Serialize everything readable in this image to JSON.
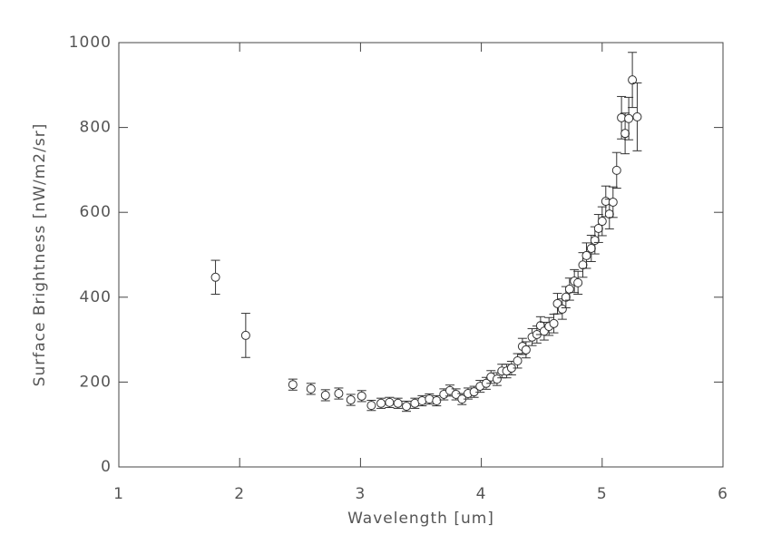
{
  "chart_data": {
    "type": "scatter",
    "x_label": "Wavelength [um]",
    "y_label": "Surface Brightness [nW/m2/sr]",
    "color": "#333333",
    "xlim": [
      1,
      6
    ],
    "xticks": [
      1,
      2,
      3,
      4,
      5,
      6
    ],
    "ylim": [
      0,
      1000
    ],
    "yticks": [
      0,
      200,
      400,
      600,
      800,
      1000
    ],
    "x": [
      1.8,
      2.05,
      2.44,
      2.59,
      2.71,
      2.82,
      2.92,
      3.01,
      3.09,
      3.17,
      3.24,
      3.31,
      3.38,
      3.45,
      3.51,
      3.57,
      3.63,
      3.69,
      3.74,
      3.79,
      3.84,
      3.89,
      3.94,
      3.99,
      4.04,
      4.08,
      4.13,
      4.17,
      4.21,
      4.25,
      4.3,
      4.34,
      4.37,
      4.42,
      4.46,
      4.49,
      4.52,
      4.56,
      4.6,
      4.63,
      4.67,
      4.7,
      4.73,
      4.77,
      4.8,
      4.84,
      4.87,
      4.91,
      4.94,
      4.97,
      5.0,
      5.03,
      5.06,
      5.09,
      5.12,
      5.16,
      5.19,
      5.22,
      5.25,
      5.29
    ],
    "values": [
      447,
      310,
      194,
      184,
      169,
      173,
      158,
      167,
      145,
      150,
      152,
      150,
      143,
      150,
      156,
      160,
      156,
      171,
      180,
      171,
      160,
      173,
      177,
      190,
      197,
      212,
      207,
      226,
      226,
      233,
      250,
      284,
      276,
      306,
      312,
      333,
      320,
      331,
      338,
      385,
      372,
      400,
      419,
      438,
      434,
      476,
      498,
      515,
      534,
      562,
      579,
      626,
      596,
      624,
      699,
      823,
      786,
      821,
      912,
      825
    ],
    "errors": [
      40,
      52,
      13,
      13,
      13,
      13,
      13,
      13,
      12,
      12,
      12,
      12,
      12,
      12,
      12,
      12,
      12,
      13,
      13,
      13,
      13,
      13,
      13,
      14,
      14,
      15,
      15,
      16,
      16,
      16,
      17,
      19,
      19,
      20,
      20,
      21,
      21,
      21,
      22,
      24,
      24,
      25,
      26,
      27,
      27,
      29,
      30,
      31,
      32,
      33,
      34,
      36,
      35,
      36,
      42,
      50,
      48,
      50,
      65,
      80
    ]
  }
}
